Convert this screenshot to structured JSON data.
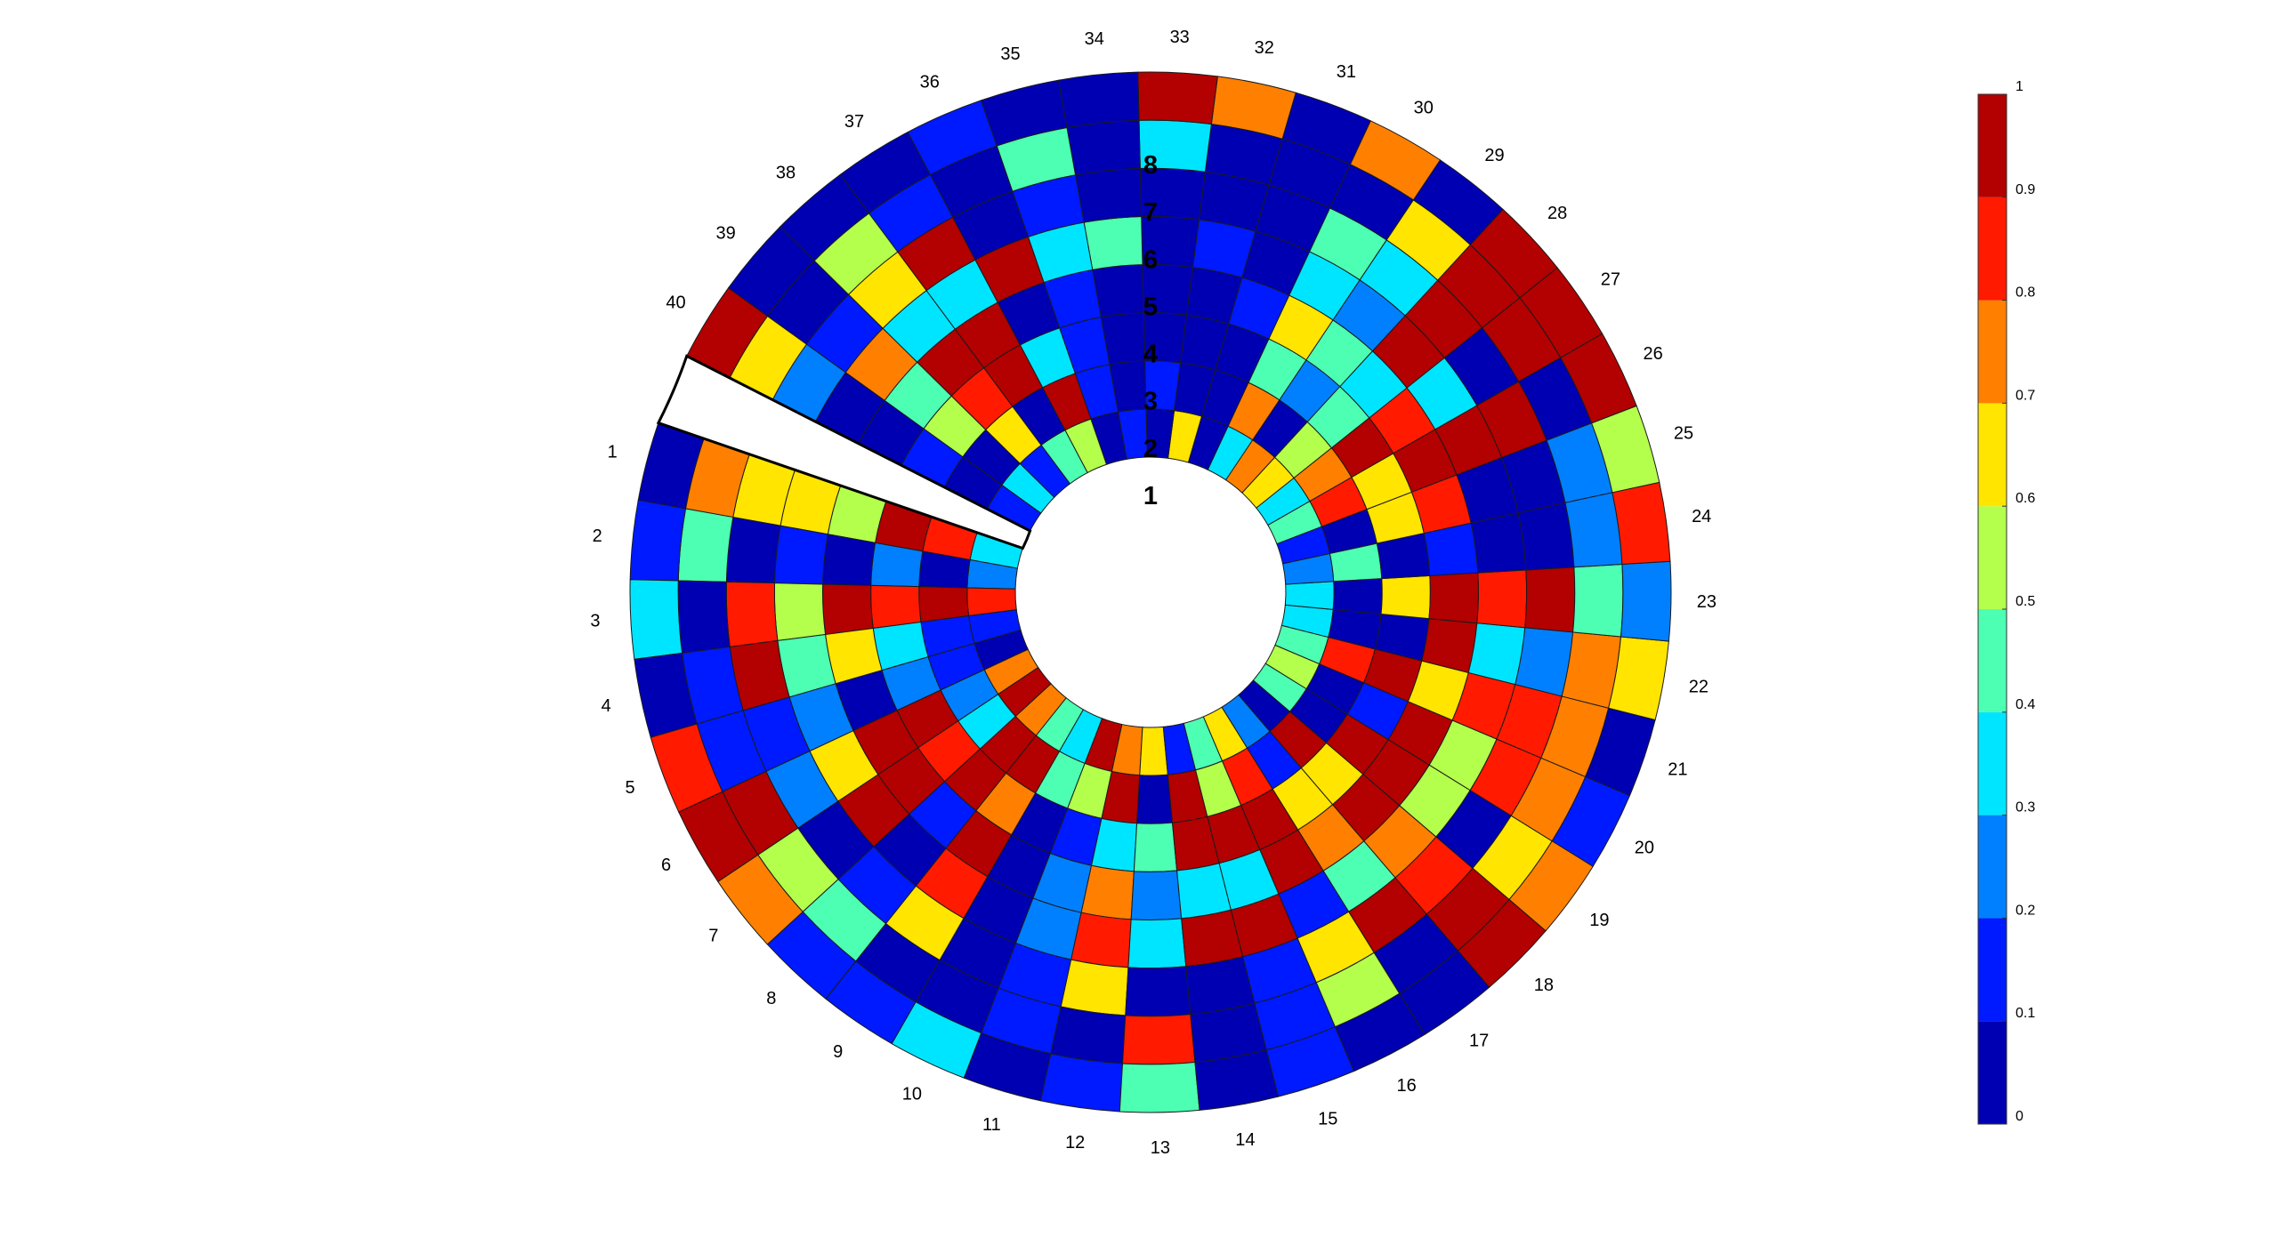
{
  "chart_data": {
    "type": "heatmap",
    "layout": "polar",
    "sector_labels": [
      "1",
      "2",
      "3",
      "4",
      "5",
      "6",
      "7",
      "8",
      "9",
      "10",
      "11",
      "12",
      "13",
      "14",
      "15",
      "16",
      "17",
      "18",
      "19",
      "20",
      "21",
      "22",
      "23",
      "24",
      "25",
      "26",
      "27",
      "28",
      "29",
      "30",
      "31",
      "32",
      "33",
      "34",
      "35",
      "36",
      "37",
      "38",
      "39",
      "40"
    ],
    "ring_labels": [
      "1",
      "2",
      "3",
      "4",
      "5",
      "6",
      "7",
      "8"
    ],
    "colormap": "jet",
    "color_levels": 10,
    "clim": [
      0,
      1
    ],
    "colorbar": {
      "position": "right",
      "ticks": [
        "0",
        "0.1",
        "0.2",
        "0.3",
        "0.4",
        "0.5",
        "0.6",
        "0.7",
        "0.8",
        "0.9",
        "1"
      ]
    },
    "values": [
      [
        0.35,
        0.85,
        0.95,
        0.55,
        0.65,
        0.65,
        0.75,
        0.05
      ],
      [
        0.25,
        0.05,
        0.25,
        0.05,
        0.15,
        0.05,
        0.45,
        0.15
      ],
      [
        0.85,
        0.95,
        0.85,
        0.95,
        0.55,
        0.85,
        0.05,
        0.35
      ],
      [
        0.15,
        0.15,
        0.35,
        0.65,
        0.45,
        0.95,
        0.15,
        0.05
      ],
      [
        0.05,
        0.15,
        0.25,
        0.05,
        0.25,
        0.15,
        0.15,
        0.85
      ],
      [
        0.75,
        0.25,
        0.95,
        0.95,
        0.65,
        0.25,
        0.95,
        0.95
      ],
      [
        0.95,
        0.35,
        0.85,
        0.95,
        0.95,
        0.05,
        0.55,
        0.75
      ],
      [
        0.75,
        0.95,
        0.95,
        0.15,
        0.05,
        0.15,
        0.45,
        0.15
      ],
      [
        0.45,
        0.95,
        0.75,
        0.95,
        0.85,
        0.65,
        0.05,
        0.15
      ],
      [
        0.35,
        0.45,
        0.05,
        0.05,
        0.05,
        0.05,
        0.05,
        0.35
      ],
      [
        0.95,
        0.55,
        0.15,
        0.25,
        0.25,
        0.15,
        0.15,
        0.05
      ],
      [
        0.75,
        0.95,
        0.35,
        0.75,
        0.85,
        0.65,
        0.05,
        0.15
      ],
      [
        0.65,
        0.05,
        0.45,
        0.25,
        0.35,
        0.05,
        0.85,
        0.45
      ],
      [
        0.15,
        0.95,
        0.95,
        0.35,
        0.95,
        0.05,
        0.05,
        0.05
      ],
      [
        0.45,
        0.55,
        0.95,
        0.35,
        0.95,
        0.15,
        0.15,
        0.15
      ],
      [
        0.65,
        0.85,
        0.95,
        0.95,
        0.15,
        0.65,
        0.55,
        0.05
      ],
      [
        0.25,
        0.15,
        0.65,
        0.75,
        0.45,
        0.95,
        0.05,
        0.05
      ],
      [
        0.05,
        0.95,
        0.65,
        0.95,
        0.75,
        0.85,
        0.95,
        0.95
      ],
      [
        0.45,
        0.05,
        0.95,
        0.95,
        0.55,
        0.05,
        0.65,
        0.75
      ],
      [
        0.55,
        0.05,
        0.15,
        0.95,
        0.55,
        0.85,
        0.75,
        0.15
      ],
      [
        0.45,
        0.85,
        0.95,
        0.65,
        0.85,
        0.85,
        0.75,
        0.05
      ],
      [
        0.35,
        0.05,
        0.05,
        0.95,
        0.35,
        0.25,
        0.75,
        0.65
      ],
      [
        0.35,
        0.05,
        0.65,
        0.95,
        0.85,
        0.95,
        0.45,
        0.25
      ],
      [
        0.25,
        0.45,
        0.05,
        0.15,
        0.05,
        0.05,
        0.25,
        0.85
      ],
      [
        0.15,
        0.05,
        0.65,
        0.85,
        0.05,
        0.05,
        0.25,
        0.55
      ],
      [
        0.45,
        0.85,
        0.65,
        0.95,
        0.95,
        0.95,
        0.05,
        0.95
      ],
      [
        0.35,
        0.75,
        0.95,
        0.85,
        0.35,
        0.05,
        0.95,
        0.95
      ],
      [
        0.65,
        0.55,
        0.45,
        0.35,
        0.95,
        0.95,
        0.95,
        0.95
      ],
      [
        0.75,
        0.05,
        0.25,
        0.45,
        0.25,
        0.35,
        0.65,
        0.05
      ],
      [
        0.35,
        0.75,
        0.45,
        0.65,
        0.35,
        0.45,
        0.05,
        0.75
      ],
      [
        0.05,
        0.05,
        0.05,
        0.15,
        0.05,
        0.05,
        0.05,
        0.05
      ],
      [
        0.65,
        0.05,
        0.05,
        0.05,
        0.15,
        0.05,
        0.05,
        0.75
      ],
      [
        0.05,
        0.15,
        0.05,
        0.05,
        0.05,
        0.05,
        0.35,
        0.95
      ],
      [
        0.15,
        0.05,
        0.05,
        0.05,
        0.45,
        0.05,
        0.05,
        0.05
      ],
      [
        0.05,
        0.15,
        0.15,
        0.15,
        0.35,
        0.15,
        0.45,
        0.05
      ],
      [
        0.55,
        0.95,
        0.35,
        0.05,
        0.95,
        0.05,
        0.05,
        0.15
      ],
      [
        0.45,
        0.05,
        0.95,
        0.95,
        0.35,
        0.95,
        0.15,
        0.05
      ],
      [
        0.15,
        0.65,
        0.85,
        0.95,
        0.35,
        0.65,
        0.55,
        0.05
      ],
      [
        0.35,
        0.05,
        0.55,
        0.45,
        0.75,
        0.15,
        0.05,
        0.05
      ],
      [
        0.15,
        0.05,
        0.15,
        0.05,
        0.05,
        0.25,
        0.65,
        0.95
      ]
    ]
  }
}
